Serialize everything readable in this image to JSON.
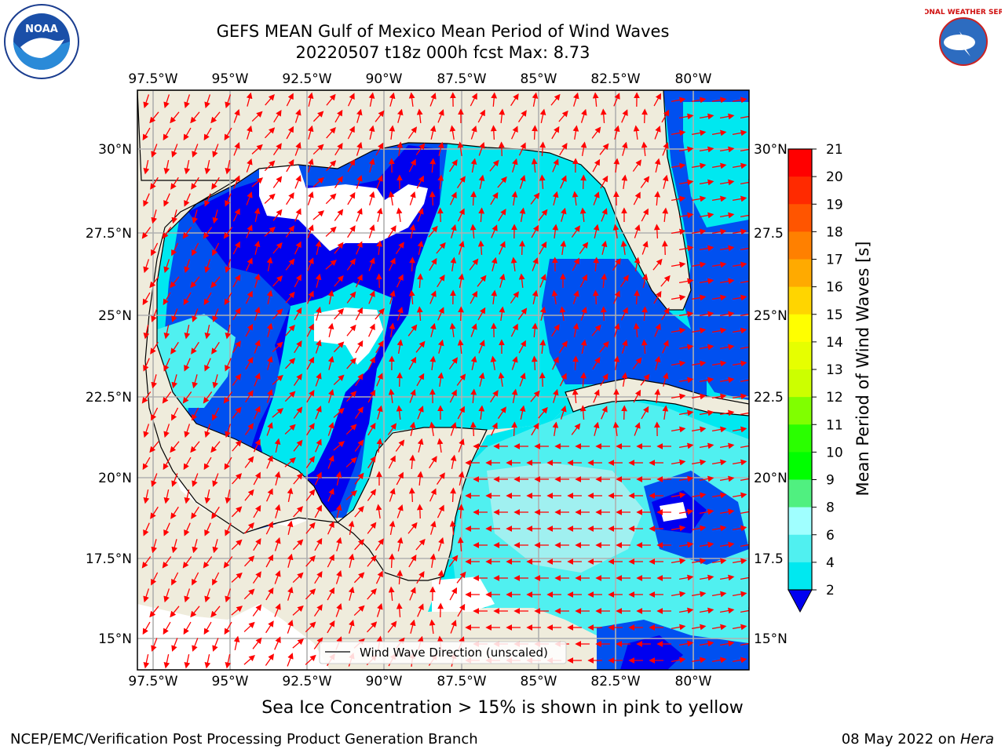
{
  "title": {
    "line1": "GEFS MEAN Gulf of Mexico Mean Period of Wind Waves",
    "line2": "20220507 t18z 000h fcst   Max: 8.73"
  },
  "logos": {
    "left": {
      "icon": "noaa-logo",
      "text": "NOAA"
    },
    "right": {
      "icon": "nws-logo",
      "text": "NATIONAL WEATHER SERVICE"
    }
  },
  "map": {
    "lon_ticks": [
      "97.5°W",
      "95°W",
      "92.5°W",
      "90°W",
      "87.5°W",
      "85°W",
      "82.5°W",
      "80°W"
    ],
    "lat_ticks_left": [
      "30°N",
      "27.5°N",
      "25°N",
      "22.5°N",
      "20°N",
      "17.5°N",
      "15°N"
    ],
    "lat_ticks_right": [
      "30°N",
      "27.5",
      "25°N",
      "22.5",
      "20°N",
      "17.5",
      "15°N"
    ],
    "land_color": "#efecdc",
    "ocean_colors": {
      "level_2_4": "#0050f0",
      "below_2": "#0000f0",
      "level_4_6": "#00e8f0",
      "level_6_8": "#50f0f0",
      "level_8_9": "#a0f0f0"
    },
    "grid": true,
    "legend": {
      "label": "Wind Wave Direction (unscaled)",
      "position": "lower-center"
    },
    "arrow_color": "#ff0000"
  },
  "colorbar": {
    "label": "Mean Period of Wind Waves [s]",
    "ticks": [
      "21",
      "20",
      "19",
      "18",
      "17",
      "16",
      "15",
      "14",
      "13",
      "12",
      "11",
      "10",
      "9",
      "8",
      "6",
      "4",
      "2"
    ],
    "colors": [
      "#ff0000",
      "#ff2a00",
      "#ff5500",
      "#ff8000",
      "#ffaa00",
      "#ffd500",
      "#ffff00",
      "#e6ff00",
      "#ccff00",
      "#80ff00",
      "#2aff00",
      "#00ff00",
      "#50f080",
      "#a0ffff",
      "#50f0f0",
      "#00e8f0",
      "#0070f0",
      "#0000f0"
    ]
  },
  "note": "Sea Ice Concentration > 15% is shown in pink to yellow",
  "footer": {
    "left": "NCEP/EMC/Verification Post Processing Product Generation Branch",
    "right_prefix": "08 May 2022 on ",
    "right_italic": "Hera"
  }
}
